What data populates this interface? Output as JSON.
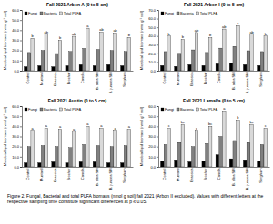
{
  "caption": "Figure 2. Fungal, Bacterial and total PLFA biomass (nmol g soil) fall 2021 (Arbon II excluded). Values with different letters at the respective sampling time constitute significant differences at p ≤ 0.05.",
  "chart_data": [
    {
      "type": "bar",
      "title": "Fall 2021 Arbon A (0 to 5 cm)",
      "y_label": "Microbial lipid biomass (nmol g⁻¹ soil)",
      "categories": [
        "Control",
        "Mustard",
        "Brassica",
        "Biochar",
        "Canola",
        "B. alba SM",
        "B. juncea SM",
        "Sorghum"
      ],
      "series": [
        {
          "name": "Fungi",
          "color": "#000000",
          "values": [
            4,
            5,
            4,
            5,
            6,
            5,
            6,
            5
          ]
        },
        {
          "name": "Bacteria",
          "color": "#808080",
          "values": [
            18,
            20,
            17,
            19,
            22,
            21,
            20,
            19
          ]
        },
        {
          "name": "Total PLFA",
          "color": "#d9d9d9",
          "values": [
            32,
            36,
            30,
            34,
            42,
            38,
            37,
            33
          ],
          "letters": [
            "b",
            "ab",
            "b",
            "ab",
            "a",
            "ab",
            "ab",
            "b"
          ]
        }
      ],
      "ylim": [
        0,
        60
      ],
      "yticks": [
        {
          "value": 0,
          "label": "0.0"
        },
        {
          "value": 10,
          "label": "10.0"
        },
        {
          "value": 20,
          "label": "20.0"
        },
        {
          "value": 30,
          "label": "30.0"
        },
        {
          "value": 40,
          "label": "40.0"
        },
        {
          "value": 50,
          "label": "50.0"
        },
        {
          "value": 60,
          "label": "60.0"
        }
      ],
      "legend": "top-left"
    },
    {
      "type": "bar",
      "title": "Fall 2021 Arbon I (0 to 5 cm)",
      "y_label": "Microbial lipid biomass (nmol g⁻¹ soil)",
      "categories": [
        "Control",
        "Mustard",
        "Brassica",
        "Biochar",
        "Canola",
        "B. alba SM",
        "B. juncea SM",
        "Sorghum"
      ],
      "series": [
        {
          "name": "Fungi",
          "color": "#000000",
          "values": [
            6,
            5,
            7,
            6,
            8,
            9,
            7,
            6
          ]
        },
        {
          "name": "Bacteria",
          "color": "#808080",
          "values": [
            22,
            20,
            24,
            21,
            26,
            28,
            23,
            22
          ]
        },
        {
          "name": "Total PLFA",
          "color": "#d9d9d9",
          "values": [
            40,
            36,
            44,
            38,
            48,
            52,
            42,
            40
          ],
          "letters": [
            "b",
            "b",
            "ab",
            "b",
            "ab",
            "a",
            "ab",
            "b"
          ]
        }
      ],
      "ylim": [
        0,
        70
      ],
      "yticks": [
        {
          "value": 0,
          "label": "0.0"
        },
        {
          "value": 10,
          "label": "10.0"
        },
        {
          "value": 20,
          "label": "20.0"
        },
        {
          "value": 30,
          "label": "30.0"
        },
        {
          "value": 40,
          "label": "40.0"
        },
        {
          "value": 50,
          "label": "50.0"
        },
        {
          "value": 60,
          "label": "60.0"
        },
        {
          "value": 70,
          "label": "70.0"
        }
      ],
      "legend": "top-left"
    },
    {
      "type": "bar",
      "title": "Fall 2021 Austin (0 to 5 cm)",
      "y_label": "Microbial lipid biomass (nmol g⁻¹ soil)",
      "categories": [
        "Control",
        "Mustard",
        "Brassica",
        "Biochar",
        "Canola",
        "B. alba SM",
        "B. juncea SM",
        "Sorghum"
      ],
      "series": [
        {
          "name": "Fungi",
          "color": "#000000",
          "values": [
            4,
            4,
            5,
            4,
            5,
            5,
            4,
            4
          ]
        },
        {
          "name": "Bacteria",
          "color": "#808080",
          "values": [
            20,
            21,
            20,
            19,
            22,
            21,
            20,
            21
          ]
        },
        {
          "name": "Total PLFA",
          "color": "#d9d9d9",
          "values": [
            36,
            38,
            37,
            35,
            40,
            38,
            36,
            37
          ],
          "letters": [
            "a",
            "a",
            "a",
            "a",
            "a",
            "a",
            "a",
            "a"
          ]
        }
      ],
      "ylim": [
        0,
        60
      ],
      "yticks": [
        {
          "value": 0,
          "label": "0.0"
        },
        {
          "value": 10,
          "label": "10.0"
        },
        {
          "value": 20,
          "label": "20.0"
        },
        {
          "value": 30,
          "label": "30.0"
        },
        {
          "value": 40,
          "label": "40.0"
        },
        {
          "value": 50,
          "label": "50.0"
        },
        {
          "value": 60,
          "label": "60.0"
        }
      ],
      "legend": "top-left"
    },
    {
      "type": "bar",
      "title": "Fall 2021 Lamalfa (0 to 5 cm)",
      "y_label": "Microbial lipid biomass (nmol g⁻¹ soil)",
      "categories": [
        "Control",
        "Mustard",
        "Brassica",
        "Biochar",
        "Canola",
        "B. alba SM",
        "B. juncea SM",
        "Sorghum"
      ],
      "series": [
        {
          "name": "Fungi",
          "color": "#000000",
          "values": [
            6,
            7,
            5,
            6,
            12,
            8,
            7,
            6
          ]
        },
        {
          "name": "Bacteria",
          "color": "#808080",
          "values": [
            22,
            24,
            20,
            23,
            30,
            26,
            24,
            22
          ]
        },
        {
          "name": "Total PLFA",
          "color": "#d9d9d9",
          "values": [
            38,
            42,
            36,
            40,
            55,
            46,
            42,
            38
          ],
          "letters": [
            "c",
            "bc",
            "c",
            "bc",
            "a",
            "b",
            "bc",
            "c"
          ]
        }
      ],
      "ylim": [
        0,
        60
      ],
      "yticks": [
        {
          "value": 0,
          "label": "0.0"
        },
        {
          "value": 10,
          "label": "10.0"
        },
        {
          "value": 20,
          "label": "20.0"
        },
        {
          "value": 30,
          "label": "30.0"
        },
        {
          "value": 40,
          "label": "40.0"
        },
        {
          "value": 50,
          "label": "50.0"
        },
        {
          "value": 60,
          "label": "60.0"
        }
      ],
      "legend": "top-left"
    }
  ]
}
